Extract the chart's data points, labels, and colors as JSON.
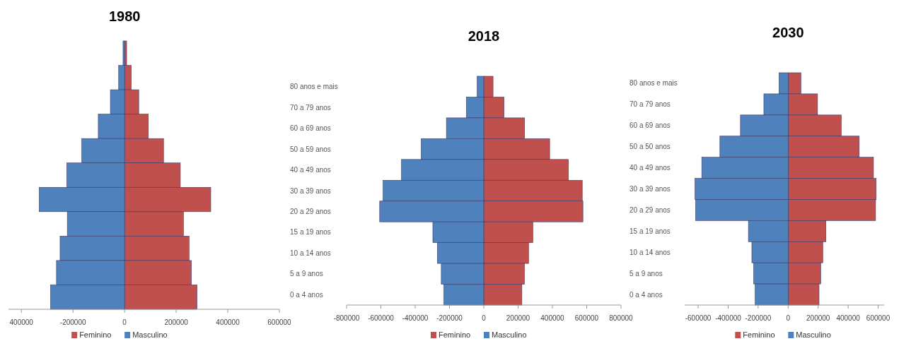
{
  "chart_data": [
    {
      "type": "bar",
      "orientation": "horizontal",
      "stacked": true,
      "title": "1980",
      "categories": [
        null,
        null,
        null,
        null,
        null,
        null,
        null,
        null,
        null,
        null,
        null
      ],
      "series": [
        {
          "name": "Feminino",
          "color": "#c0504d",
          "values": [
            8000,
            26000,
            55000,
            92000,
            151000,
            216000,
            334000,
            228000,
            250000,
            259000,
            281000
          ]
        },
        {
          "name": "Masculino",
          "color": "#4f81bd",
          "values": [
            -6000,
            -23000,
            -55000,
            -102000,
            -166000,
            -224000,
            -331000,
            -222000,
            -250000,
            -264000,
            -287000
          ]
        }
      ],
      "xlim": [
        -450000,
        600000
      ],
      "xticks": [
        {
          "value": -400000,
          "label": "400000"
        },
        -200000,
        0,
        200000,
        400000,
        600000
      ],
      "grid": false,
      "legend": "bottom"
    },
    {
      "type": "bar",
      "orientation": "horizontal",
      "stacked": true,
      "title": "2018",
      "categories": [
        "80 anos e mais",
        "70 a 79 anos",
        "60 a 69 anos",
        "50 a 59 anos",
        "40 a 49 anos",
        "30 a 39 anos",
        "20 a 29 anos",
        "15 a 19 anos",
        "10 a 14 anos",
        "5 a 9 anos",
        "0 a 4 anos"
      ],
      "series": [
        {
          "name": "Feminino",
          "color": "#c0504d",
          "values": [
            54000,
            118000,
            238000,
            384000,
            493000,
            574000,
            578000,
            286000,
            261000,
            237000,
            222000
          ]
        },
        {
          "name": "Masculino",
          "color": "#4f81bd",
          "values": [
            -39000,
            -102000,
            -218000,
            -365000,
            -480000,
            -587000,
            -607000,
            -297000,
            -271000,
            -248000,
            -233000
          ]
        }
      ],
      "xlim": [
        -800000,
        800000
      ],
      "xticks": [
        -800000,
        -600000,
        -400000,
        -200000,
        0,
        200000,
        400000,
        600000,
        800000
      ],
      "grid": false,
      "legend": "bottom"
    },
    {
      "type": "bar",
      "orientation": "horizontal",
      "stacked": true,
      "title": "2030",
      "categories": [
        "80 anos e mais",
        "70 a 79 anos",
        "60 a 69 anos",
        "50 a 50 anos",
        "40 a 49 anos",
        "30 a 39 anos",
        "20 a 29 anos",
        "15 a 19 anos",
        "10 a 14 anos",
        "5 a 9 anos",
        "0 a 4 anos"
      ],
      "series": [
        {
          "name": "Feminino",
          "color": "#c0504d",
          "values": [
            85000,
            196000,
            354000,
            474000,
            569000,
            587000,
            583000,
            252000,
            231000,
            217000,
            206000
          ]
        },
        {
          "name": "Masculino",
          "color": "#4f81bd",
          "values": [
            -61000,
            -162000,
            -318000,
            -455000,
            -576000,
            -621000,
            -617000,
            -265000,
            -242000,
            -230000,
            -220000
          ]
        }
      ],
      "xlim": [
        -690000,
        640000
      ],
      "xticks": [
        -600000,
        -400000,
        -200000,
        0,
        200000,
        400000,
        600000
      ],
      "grid": false,
      "legend": "bottom"
    }
  ]
}
